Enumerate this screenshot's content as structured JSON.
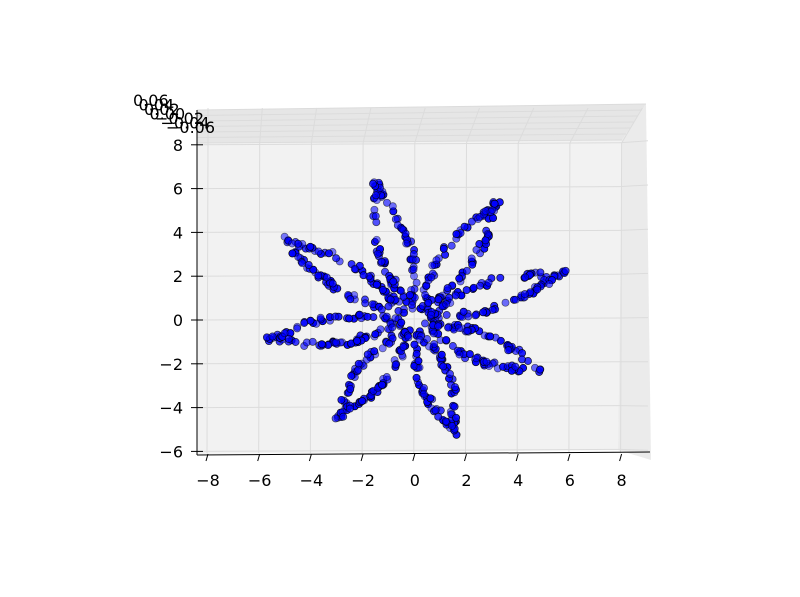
{
  "chart_data": {
    "type": "scatter",
    "projection": "3d",
    "title": "",
    "xlabel": "",
    "ylabel": "",
    "zlabel": "",
    "xlim": [
      -8.5,
      9.3
    ],
    "ylim": [
      -6.1,
      8.6
    ],
    "zlim": [
      -0.06,
      0.06
    ],
    "x_ticks": [
      "−8",
      "−6",
      "−4",
      "−2",
      "0",
      "2",
      "4",
      "6",
      "8"
    ],
    "y_ticks": [
      "−6",
      "−4",
      "−2",
      "0",
      "2",
      "4",
      "6",
      "8"
    ],
    "z_ticks": [
      "0.06",
      "0.04",
      "0.02",
      "0.00",
      "−0.02",
      "−0.04",
      "−0.06"
    ],
    "grid": true,
    "marker_color": "#0000ff",
    "marker_edge_color": "#000000",
    "pane_color": "#f2f2f2",
    "petal_count": 8,
    "petal_count_shape_tips": [
      {
        "x": -1.5,
        "y": 6.3
      },
      {
        "x": 3.2,
        "y": 5.4
      },
      {
        "x": -5.2,
        "y": 3.8
      },
      {
        "x": 5.8,
        "y": 2.2
      },
      {
        "x": -5.8,
        "y": -0.9
      },
      {
        "x": 5.0,
        "y": -2.4
      },
      {
        "x": -3.0,
        "y": -4.5
      },
      {
        "x": 1.5,
        "y": -5.2
      }
    ],
    "series": [
      {
        "points": []
      }
    ]
  }
}
